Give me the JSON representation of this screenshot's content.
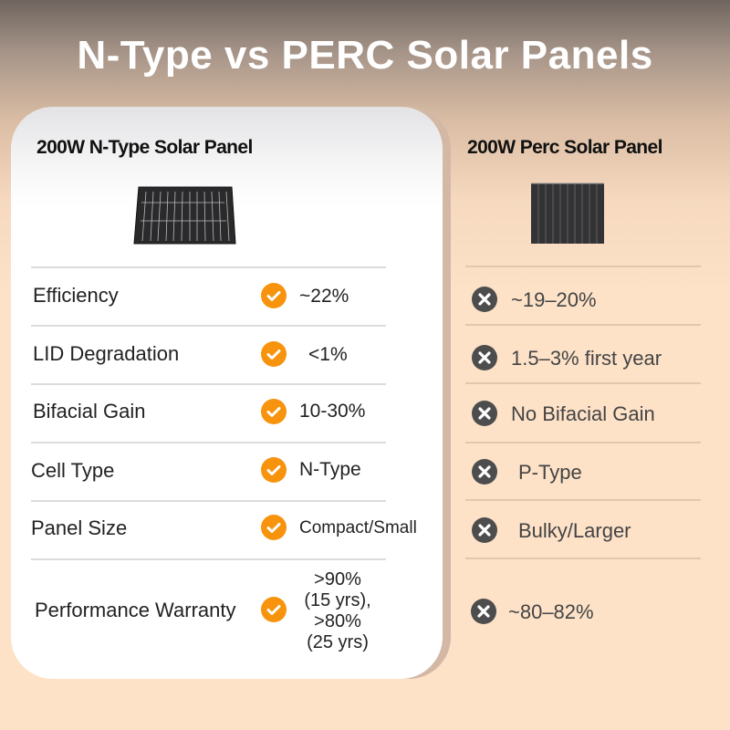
{
  "title": "N-Type vs PERC Solar Panels",
  "left": {
    "heading": "200W N-Type Solar Panel",
    "icon": "check-icon"
  },
  "right": {
    "heading": "200W Perc Solar Panel",
    "icon": "x-icon"
  },
  "rows": [
    {
      "label": "Efficiency",
      "ntype": "~22%",
      "perc": "~19–20%"
    },
    {
      "label": "LID Degradation",
      "ntype": "<1%",
      "perc": "1.5–3% first year"
    },
    {
      "label": "Bifacial Gain",
      "ntype": "10-30%",
      "perc": "No Bifacial Gain"
    },
    {
      "label": "Cell Type",
      "ntype": "N-Type",
      "perc": "P-Type"
    },
    {
      "label": "Panel Size",
      "ntype": "Compact/Small",
      "perc": "Bulky/Larger"
    },
    {
      "label": "Performance Warranty",
      "ntype_lines": [
        ">90%",
        "(15 yrs),",
        ">80%",
        "(25 yrs)"
      ],
      "perc": "~80–82%"
    }
  ],
  "colors": {
    "check": "#f7930c",
    "x": "#4d4d4d",
    "background": "#fde2c8"
  }
}
